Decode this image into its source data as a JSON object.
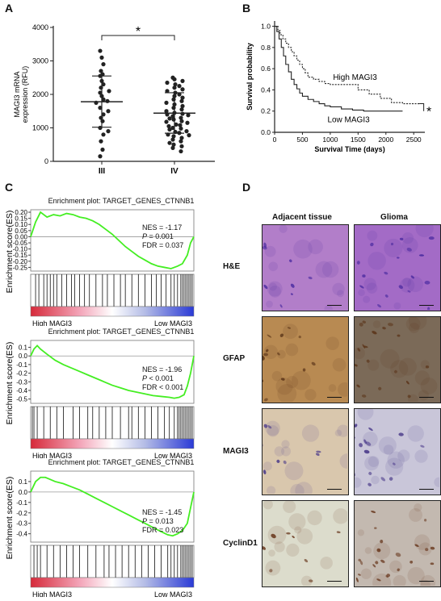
{
  "panels": {
    "a": "A",
    "b": "B",
    "c": "C",
    "d": "D"
  },
  "chart_data": [
    {
      "type": "scatter",
      "panel": "A",
      "ylabel": "MAGI3 mRNA expression (RFU)",
      "categories": [
        "III",
        "IV"
      ],
      "ylim": [
        0,
        4000
      ],
      "yticks": [
        0,
        1000,
        2000,
        3000,
        4000
      ],
      "mean": [
        1780,
        1440
      ],
      "sd_upper": [
        2550,
        2050
      ],
      "sd_lower": [
        1020,
        840
      ],
      "significance": "*",
      "points": [
        [
          3300,
          3100,
          2900,
          2700,
          2600,
          2550,
          2400,
          2300,
          2200,
          2100,
          2050,
          1950,
          1850,
          1800,
          1750,
          1600,
          1500,
          1400,
          1300,
          1200,
          1000,
          900,
          800,
          600,
          350,
          150
        ],
        [
          2500,
          2450,
          2400,
          2350,
          2300,
          2250,
          2200,
          2150,
          2100,
          2050,
          2000,
          1950,
          1900,
          1850,
          1800,
          1750,
          1700,
          1650,
          1600,
          1550,
          1500,
          1450,
          1420,
          1400,
          1380,
          1350,
          1300,
          1280,
          1250,
          1200,
          1180,
          1150,
          1100,
          1080,
          1050,
          1000,
          980,
          950,
          900,
          880,
          850,
          800,
          780,
          750,
          700,
          650,
          600,
          550,
          500,
          450,
          400,
          300
        ]
      ]
    },
    {
      "type": "line",
      "panel": "B",
      "ylabel": "Survival probability",
      "xlabel": "Survival Time (days)",
      "xlim": [
        0,
        2700
      ],
      "ylim": [
        0,
        1.05
      ],
      "xticks": [
        0,
        500,
        1000,
        1500,
        2000,
        2500
      ],
      "yticks": [
        0.0,
        0.2,
        0.4,
        0.6,
        0.8,
        1.0
      ],
      "significance": "*",
      "series": [
        {
          "name": "High MAGI3",
          "style": "dashed",
          "x": [
            0,
            60,
            100,
            150,
            200,
            250,
            300,
            350,
            400,
            450,
            500,
            550,
            600,
            700,
            800,
            900,
            1000,
            1100,
            1200,
            1300,
            1500,
            1700,
            1900,
            2100,
            2300,
            2500,
            2600
          ],
          "y": [
            1.0,
            0.96,
            0.92,
            0.88,
            0.84,
            0.8,
            0.76,
            0.72,
            0.68,
            0.64,
            0.6,
            0.56,
            0.52,
            0.5,
            0.48,
            0.46,
            0.45,
            0.45,
            0.45,
            0.45,
            0.4,
            0.36,
            0.32,
            0.28,
            0.27,
            0.27,
            0.27
          ]
        },
        {
          "name": "Low MAGI3",
          "style": "solid",
          "x": [
            0,
            40,
            80,
            120,
            160,
            200,
            250,
            300,
            350,
            400,
            450,
            500,
            600,
            700,
            800,
            900,
            1000,
            1200,
            1400,
            1600,
            1800,
            2000,
            2200,
            2300
          ],
          "y": [
            1.0,
            0.95,
            0.88,
            0.8,
            0.72,
            0.64,
            0.57,
            0.5,
            0.45,
            0.41,
            0.37,
            0.34,
            0.31,
            0.29,
            0.27,
            0.25,
            0.24,
            0.22,
            0.21,
            0.2,
            0.2,
            0.2,
            0.2,
            0.2
          ]
        }
      ]
    },
    {
      "type": "line",
      "panel": "C1",
      "title": "Enrichment plot: TARGET_GENES_CTNNB1",
      "ylabel": "Enrichment score(ES)",
      "ylim": [
        -0.28,
        0.22
      ],
      "yticks": [
        0.2,
        0.15,
        0.1,
        0.05,
        0.0,
        -0.05,
        -0.1,
        -0.15,
        -0.2,
        -0.25
      ],
      "ytick_labels": [
        "0.20",
        "0.15",
        "0.10",
        "0.05",
        "0.00",
        "-0.05",
        "-0.10",
        "-0.15",
        "-0.20",
        "-0.25"
      ],
      "stats": {
        "nes": "NES = -1.17",
        "p": "= 0.001",
        "fdr": "FDR = 0.037"
      },
      "x": [
        0,
        3,
        6,
        10,
        14,
        18,
        22,
        26,
        30,
        34,
        38,
        42,
        46,
        50,
        54,
        58,
        62,
        66,
        70,
        74,
        78,
        82,
        86,
        90,
        93,
        96,
        98,
        100
      ],
      "y": [
        0.0,
        0.12,
        0.2,
        0.16,
        0.18,
        0.17,
        0.19,
        0.18,
        0.16,
        0.15,
        0.13,
        0.1,
        0.06,
        0.02,
        -0.03,
        -0.08,
        -0.12,
        -0.16,
        -0.19,
        -0.22,
        -0.24,
        -0.25,
        -0.26,
        -0.24,
        -0.22,
        -0.15,
        -0.05,
        0.0
      ],
      "hits": [
        3,
        5,
        8,
        10,
        12,
        14,
        16,
        19,
        22,
        25,
        27,
        30,
        33,
        36,
        40,
        44,
        47,
        51,
        55,
        58,
        62,
        66,
        70,
        74,
        77,
        80,
        83,
        86,
        88,
        90,
        92,
        93,
        94,
        95,
        96,
        97,
        98,
        99
      ],
      "xlabel_left": "High MAGI3",
      "xlabel_right": "Low MAGI3"
    },
    {
      "type": "line",
      "panel": "C2",
      "title": "Enrichment plot: TARGET_GENES_CTNNB1",
      "ylabel": "Enrichment score(ES)",
      "ylim": [
        -0.55,
        0.18
      ],
      "yticks": [
        0.1,
        0.0,
        -0.1,
        -0.2,
        -0.3,
        -0.4,
        -0.5
      ],
      "ytick_labels": [
        "0.1",
        "0.0",
        "-0.1",
        "-0.2",
        "-0.3",
        "-0.4",
        "-0.5"
      ],
      "stats": {
        "nes": "NES = -1.96",
        "p": "< 0.001",
        "fdr": "FDR < 0.001"
      },
      "x": [
        0,
        2,
        4,
        6,
        10,
        15,
        20,
        25,
        30,
        35,
        40,
        45,
        50,
        55,
        60,
        65,
        70,
        75,
        80,
        85,
        88,
        91,
        94,
        96,
        98,
        100
      ],
      "y": [
        0.0,
        0.08,
        0.12,
        0.08,
        0.02,
        -0.05,
        -0.1,
        -0.14,
        -0.18,
        -0.22,
        -0.26,
        -0.3,
        -0.34,
        -0.37,
        -0.4,
        -0.42,
        -0.44,
        -0.46,
        -0.47,
        -0.48,
        -0.49,
        -0.48,
        -0.45,
        -0.35,
        -0.2,
        0.0
      ],
      "hits": [
        1,
        2,
        4,
        8,
        12,
        16,
        20,
        26,
        30,
        35,
        38,
        42,
        46,
        50,
        55,
        60,
        62,
        66,
        70,
        74,
        78,
        82,
        85,
        88,
        90,
        91,
        92,
        93,
        94,
        95,
        96,
        97,
        98,
        99
      ],
      "xlabel_left": "High MAGI3",
      "xlabel_right": "Low MAGI3"
    },
    {
      "type": "line",
      "panel": "C3",
      "title": "Enrichment plot: TARGET_GENES_CTNNB1",
      "ylabel": "Enrichment score(ES)",
      "ylim": [
        -0.48,
        0.2
      ],
      "yticks": [
        0.1,
        0.0,
        -0.1,
        -0.2,
        -0.3,
        -0.4
      ],
      "ytick_labels": [
        "0.1",
        "0.0",
        "-0.1",
        "-0.2",
        "-0.3",
        "-0.4"
      ],
      "stats": {
        "nes": "NES = -1.45",
        "p": "= 0.013",
        "fdr": "FDR = 0.023"
      },
      "x": [
        0,
        3,
        6,
        9,
        12,
        15,
        20,
        25,
        30,
        35,
        40,
        45,
        50,
        55,
        60,
        65,
        70,
        75,
        80,
        84,
        87,
        90,
        93,
        96,
        98,
        100
      ],
      "y": [
        0.0,
        0.1,
        0.14,
        0.14,
        0.12,
        0.1,
        0.08,
        0.05,
        0.02,
        -0.02,
        -0.06,
        -0.1,
        -0.14,
        -0.18,
        -0.22,
        -0.26,
        -0.3,
        -0.34,
        -0.38,
        -0.41,
        -0.42,
        -0.4,
        -0.37,
        -0.3,
        -0.15,
        0.0
      ],
      "hits": [
        2,
        4,
        6,
        10,
        14,
        18,
        22,
        26,
        30,
        35,
        40,
        45,
        48,
        52,
        56,
        60,
        64,
        68,
        72,
        76,
        80,
        84,
        86,
        88,
        90,
        92,
        93,
        94,
        95,
        96,
        97,
        98,
        99
      ],
      "xlabel_left": "High MAGI3",
      "xlabel_right": "Low MAGI3"
    }
  ],
  "ihc": {
    "columns": [
      "Adjacent tissue",
      "Glioma"
    ],
    "rows": [
      "H&E",
      "GFAP",
      "MAGI3",
      "CyclinD1"
    ],
    "colors": {
      "he": [
        "#b27ec9",
        "#a36bc6"
      ],
      "gfap": [
        "#b88a52",
        "#7b6a58"
      ],
      "magi3": [
        "#d9c7ad",
        "#c9c6d9"
      ],
      "cyclind1": [
        "#dcdccc",
        "#c3b9b0"
      ]
    }
  }
}
